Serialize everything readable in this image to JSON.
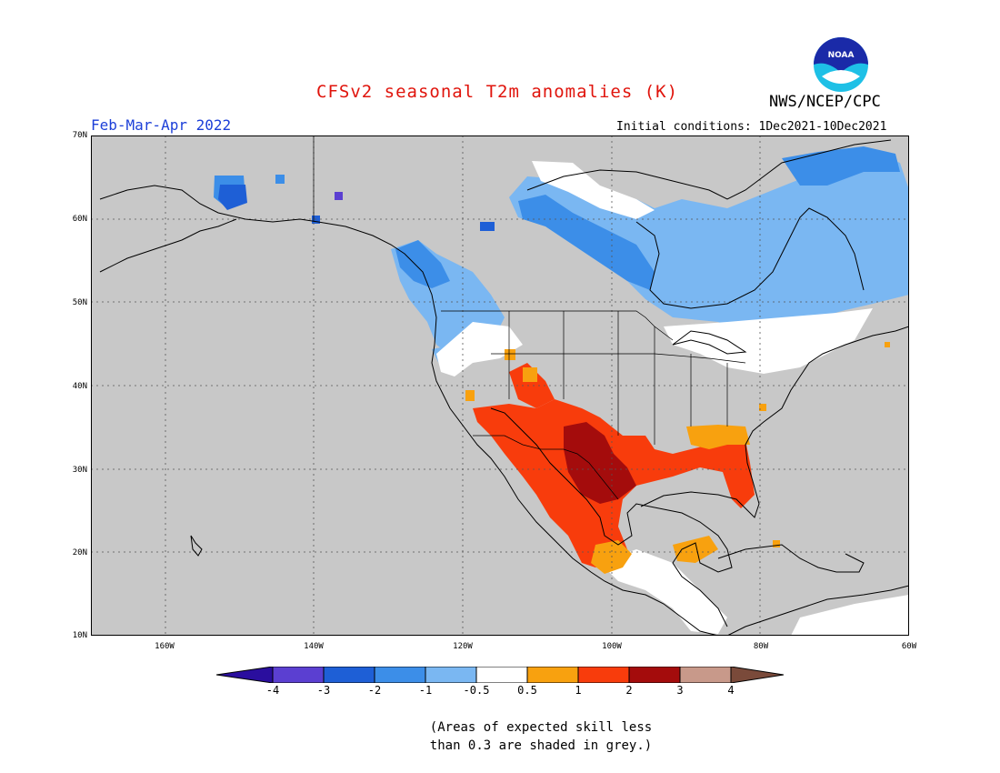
{
  "header": {
    "title": "CFSv2 seasonal T2m anomalies (K)",
    "organization": "NWS/NCEP/CPC",
    "period": "Feb-Mar-Apr 2022",
    "initial_conditions": "Initial conditions: 1Dec2021-10Dec2021",
    "logo_text": "NOAA"
  },
  "map": {
    "background_color": "#c8c8c8",
    "land_outline_color": "#000000",
    "lat_labels": [
      "70N",
      "60N",
      "50N",
      "40N",
      "30N",
      "20N",
      "10N"
    ],
    "lon_labels": [
      "160W",
      "140W",
      "120W",
      "100W",
      "80W",
      "60W"
    ]
  },
  "colorbar": {
    "tick_labels": [
      "-4",
      "-3",
      "-2",
      "-1",
      "-0.5",
      "0.5",
      "1",
      "2",
      "3",
      "4"
    ],
    "colors": [
      "#2a0e9e",
      "#5b3fd1",
      "#1e5fd6",
      "#3c8ee8",
      "#7ab7f2",
      "#ffffff",
      "#f8a10f",
      "#f83c0c",
      "#a40c0c",
      "#c8998a",
      "#7a4a3a"
    ]
  },
  "footnote": {
    "line1": "(Areas of expected skill less",
    "line2": "than 0.3 are shaded in grey.)"
  }
}
